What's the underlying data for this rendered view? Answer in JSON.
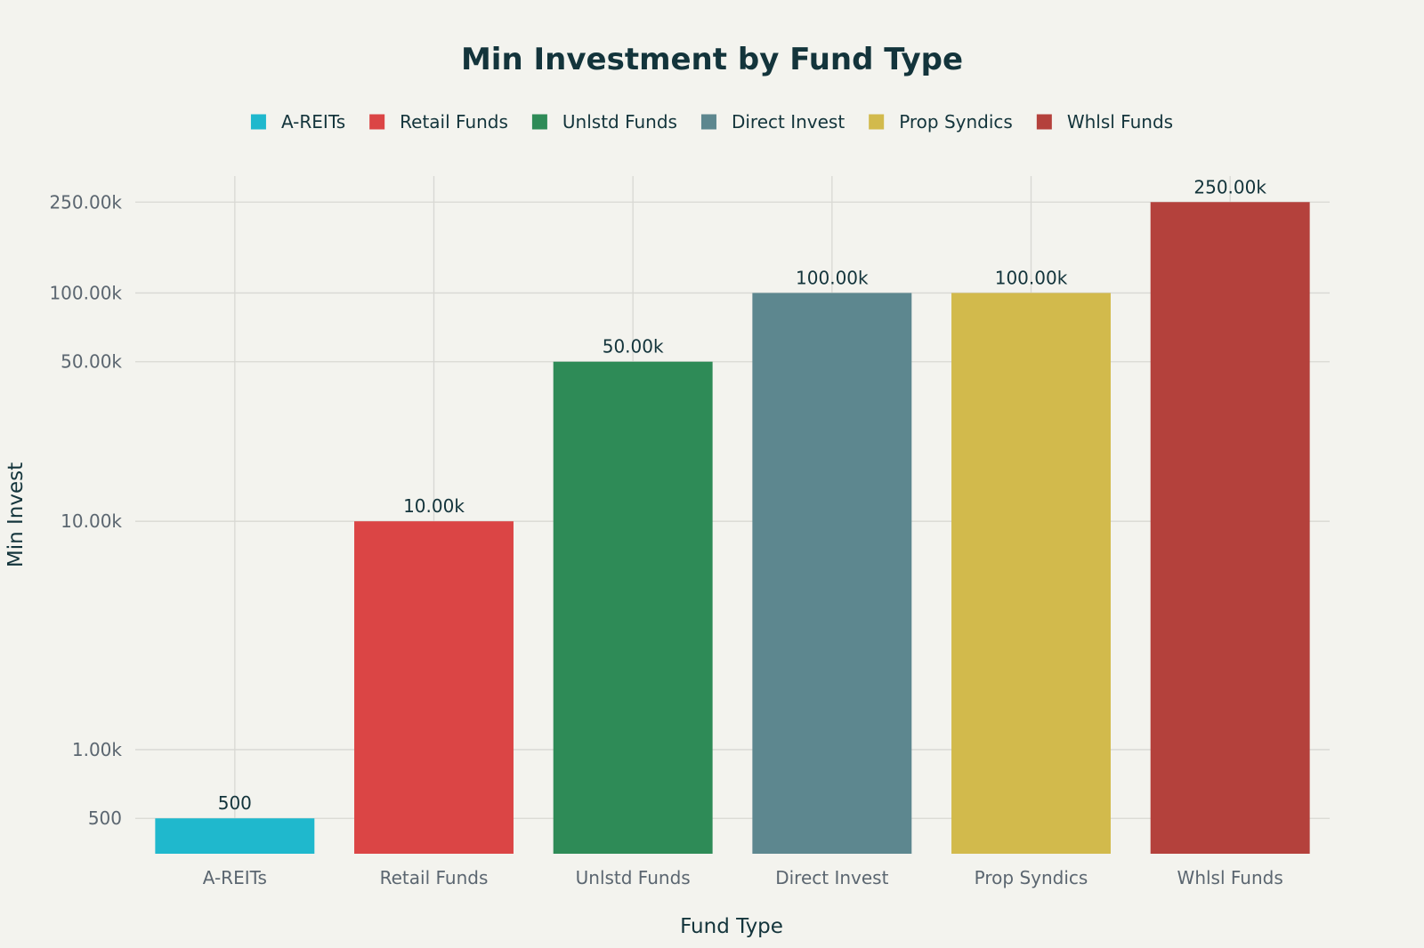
{
  "chart_data": {
    "type": "bar",
    "title": "Min Investment by Fund Type",
    "xlabel": "Fund Type",
    "ylabel": "Min Invest",
    "yscale": "log",
    "ylim": [
      350,
      325000
    ],
    "yticks": [
      500,
      1000,
      10000,
      50000,
      100000,
      250000
    ],
    "ytick_labels": [
      "500",
      "1.00k",
      "10.00k",
      "50.00k",
      "100.00k",
      "250.00k"
    ],
    "categories": [
      "A-REITs",
      "Retail Funds",
      "Unlstd Funds",
      "Direct Invest",
      "Prop Syndics",
      "Whlsl Funds"
    ],
    "values": [
      500,
      10000,
      50000,
      100000,
      100000,
      250000
    ],
    "data_labels": [
      "500",
      "10.00k",
      "50.00k",
      "100.00k",
      "100.00k",
      "250.00k"
    ],
    "colors": [
      "#1fb8cd",
      "#db4545",
      "#2e8b57",
      "#5d878f",
      "#d2ba4c",
      "#b4413c"
    ],
    "legend": {
      "placement": "top-center",
      "entries": [
        "A-REITs",
        "Retail Funds",
        "Unlstd Funds",
        "Direct Invest",
        "Prop Syndics",
        "Whlsl Funds"
      ]
    },
    "grid": true
  }
}
